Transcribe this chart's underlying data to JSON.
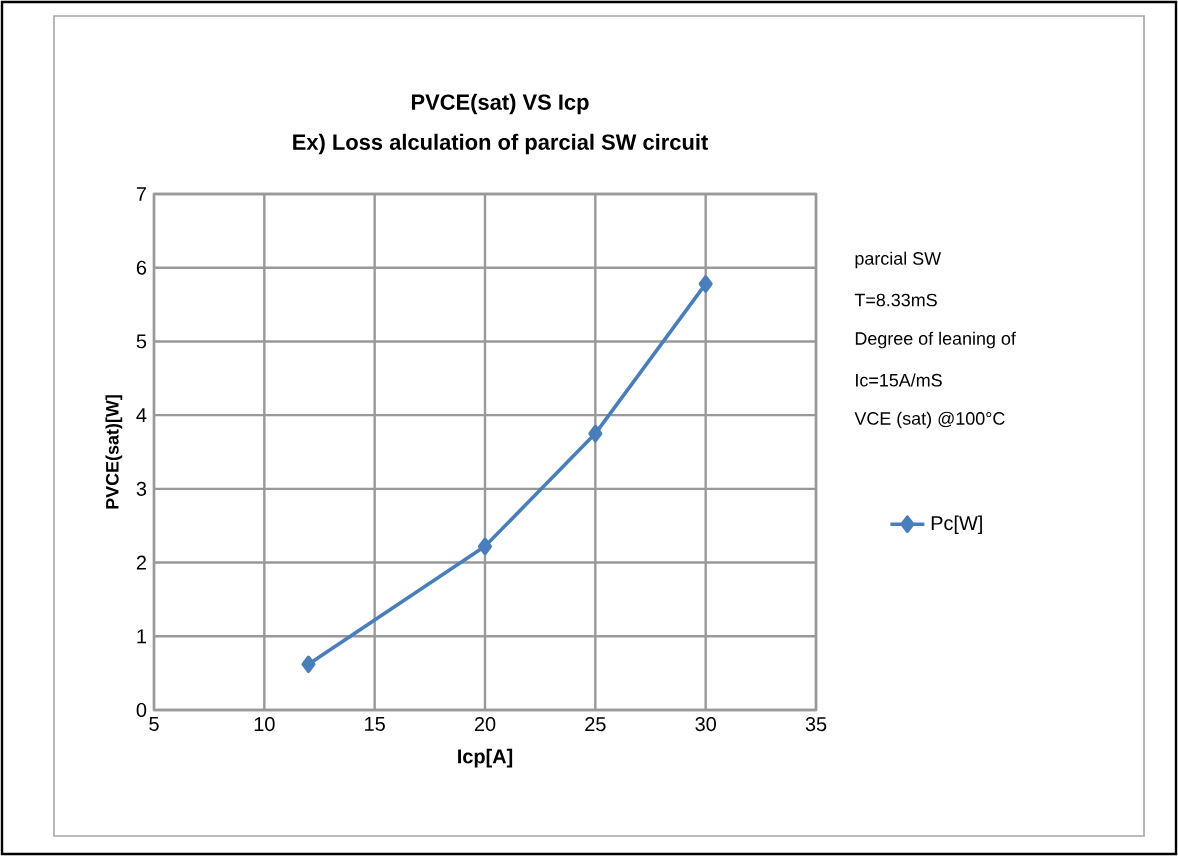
{
  "chart_data": {
    "type": "line",
    "title": "PVCE(sat)  VS  Icp",
    "subtitle": "Ex) Loss alculation of parcial SW circuit",
    "xlabel": "Icp[A]",
    "ylabel": "PVCE(sat)[W]",
    "x": [
      12,
      20,
      25,
      30
    ],
    "series": [
      {
        "name": "Pc[W]",
        "color": "#4a7ebb",
        "values": [
          0.62,
          2.22,
          3.75,
          5.78
        ]
      }
    ],
    "xlim": [
      5,
      35
    ],
    "ylim": [
      0,
      7
    ],
    "xticks": [
      5,
      10,
      15,
      20,
      25,
      30,
      35
    ],
    "yticks": [
      0,
      1,
      2,
      3,
      4,
      5,
      6,
      7
    ],
    "grid": true,
    "legend": "right",
    "marker": "diamond",
    "line_style": "solid",
    "annotations": [
      "parcial SW",
      "T=8.33mS",
      "Degree of leaning of",
      "Ic=15A/mS",
      "VCE (sat) @100°C"
    ]
  }
}
